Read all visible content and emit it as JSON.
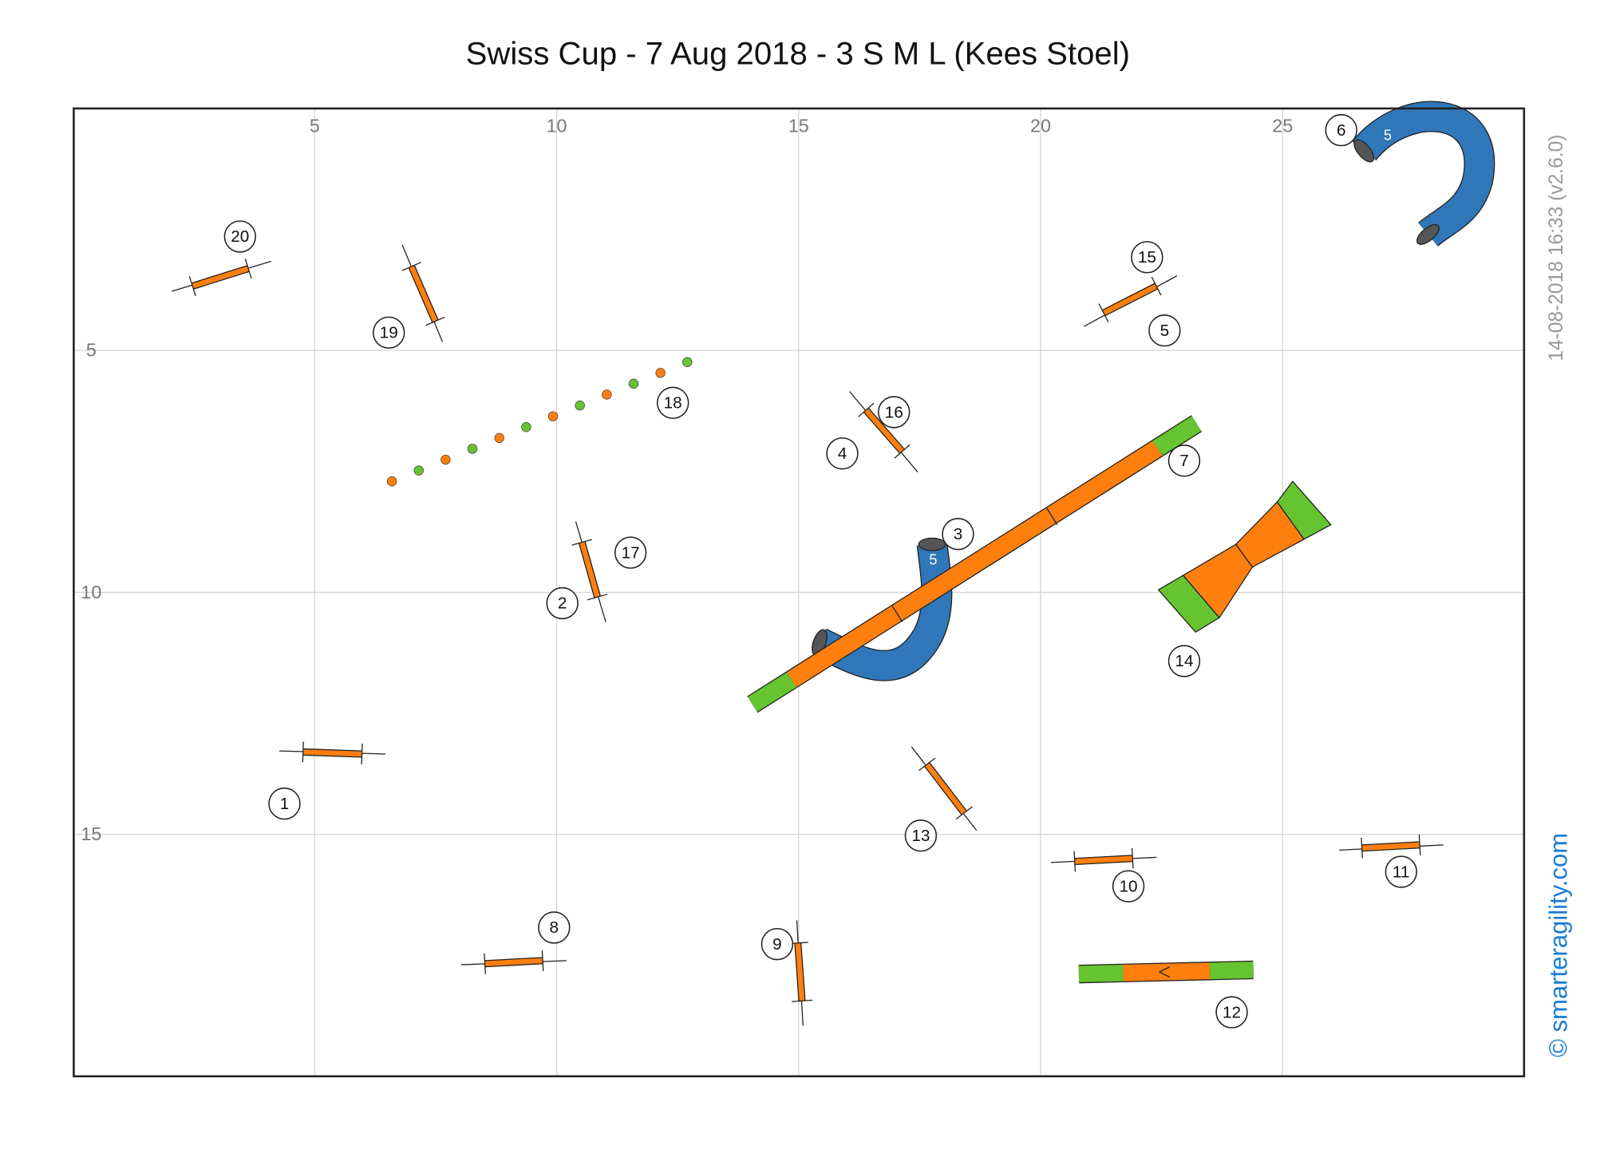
{
  "header": {
    "title": "Swiss Cup - 7 Aug 2018 - 3 S M L (Kees Stoel)"
  },
  "axes": {
    "xticks": [
      5,
      10,
      15,
      20,
      25
    ],
    "yticks": [
      5,
      10,
      15
    ]
  },
  "obstacles": {
    "numbers": [
      "1",
      "2",
      "3",
      "4",
      "5",
      "6",
      "7",
      "8",
      "9",
      "10",
      "11",
      "12",
      "13",
      "14",
      "15",
      "16",
      "17",
      "18",
      "19",
      "20"
    ],
    "tunnel_labels": [
      "5",
      "5"
    ]
  },
  "footer": {
    "timestamp": "14-08-2018 16:33  (v2.6.0)",
    "copyright": "© smarteragility.com"
  }
}
